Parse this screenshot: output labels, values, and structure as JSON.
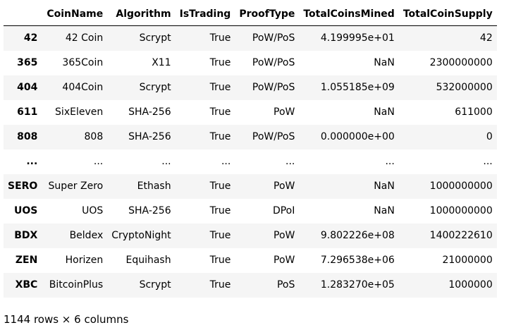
{
  "table": {
    "index_header": "",
    "columns": [
      "CoinName",
      "Algorithm",
      "IsTrading",
      "ProofType",
      "TotalCoinsMined",
      "TotalCoinSupply"
    ],
    "rows": [
      {
        "index": "42",
        "cells": [
          "42 Coin",
          "Scrypt",
          "True",
          "PoW/PoS",
          "4.199995e+01",
          "42"
        ]
      },
      {
        "index": "365",
        "cells": [
          "365Coin",
          "X11",
          "True",
          "PoW/PoS",
          "NaN",
          "2300000000"
        ]
      },
      {
        "index": "404",
        "cells": [
          "404Coin",
          "Scrypt",
          "True",
          "PoW/PoS",
          "1.055185e+09",
          "532000000"
        ]
      },
      {
        "index": "611",
        "cells": [
          "SixEleven",
          "SHA-256",
          "True",
          "PoW",
          "NaN",
          "611000"
        ]
      },
      {
        "index": "808",
        "cells": [
          "808",
          "SHA-256",
          "True",
          "PoW/PoS",
          "0.000000e+00",
          "0"
        ]
      },
      {
        "index": "...",
        "cells": [
          "...",
          "...",
          "...",
          "...",
          "...",
          "..."
        ]
      },
      {
        "index": "SERO",
        "cells": [
          "Super Zero",
          "Ethash",
          "True",
          "PoW",
          "NaN",
          "1000000000"
        ]
      },
      {
        "index": "UOS",
        "cells": [
          "UOS",
          "SHA-256",
          "True",
          "DPoI",
          "NaN",
          "1000000000"
        ]
      },
      {
        "index": "BDX",
        "cells": [
          "Beldex",
          "CryptoNight",
          "True",
          "PoW",
          "9.802226e+08",
          "1400222610"
        ]
      },
      {
        "index": "ZEN",
        "cells": [
          "Horizen",
          "Equihash",
          "True",
          "PoW",
          "7.296538e+06",
          "21000000"
        ]
      },
      {
        "index": "XBC",
        "cells": [
          "BitcoinPlus",
          "Scrypt",
          "True",
          "PoS",
          "1.283270e+05",
          "1000000"
        ]
      }
    ]
  },
  "summary": "1144 rows × 6 columns"
}
